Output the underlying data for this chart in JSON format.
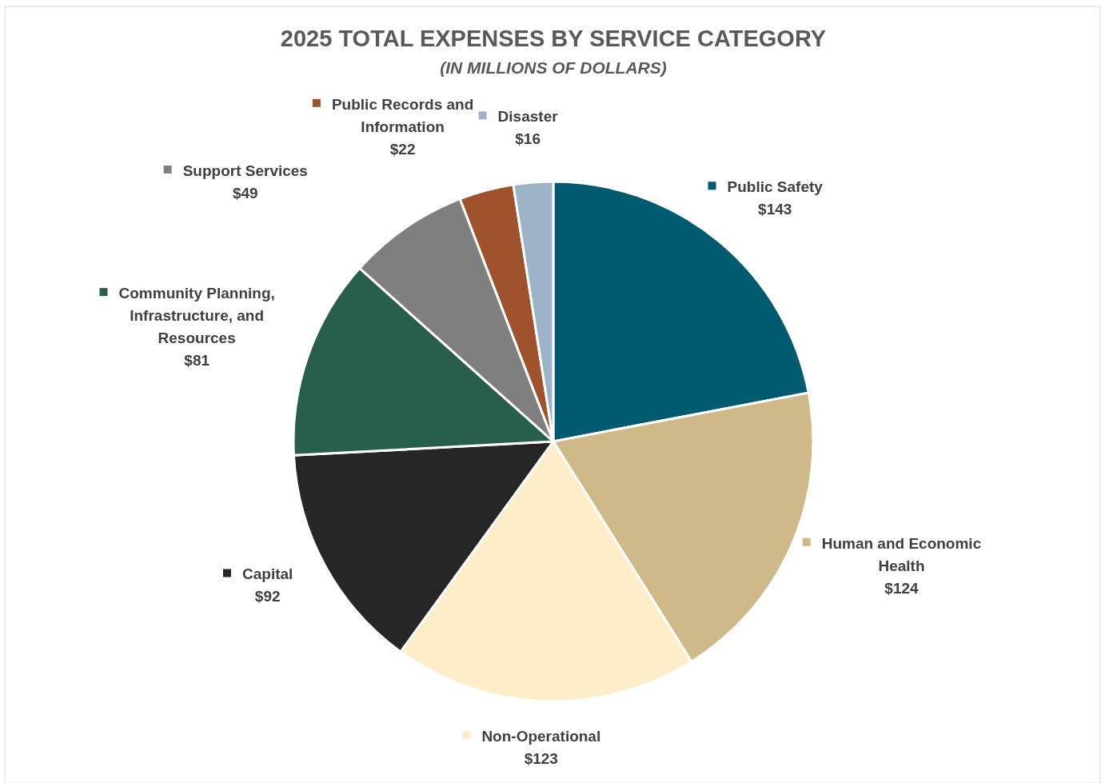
{
  "chart_data": {
    "type": "pie",
    "title": "2025 TOTAL EXPENSES BY SERVICE CATEGORY",
    "subtitle": "(IN MILLIONS OF DOLLARS)",
    "categories": [
      "Public Safety",
      "Human and Economic Health",
      "Non-Operational",
      "Capital",
      "Community Planning, Infrastructure, and Resources",
      "Support Services",
      "Public Records and Information",
      "Disaster"
    ],
    "values": [
      143,
      124,
      123,
      92,
      81,
      49,
      22,
      16
    ],
    "value_labels": [
      "$143",
      "$124",
      "$123",
      "$92",
      "$81",
      "$49",
      "$22",
      "$16"
    ],
    "colors": [
      "#005a70",
      "#cfb988",
      "#fdedc8",
      "#262626",
      "#275e4e",
      "#7f7f7f",
      "#a0522d",
      "#9db3c8"
    ],
    "legend": "top left"
  }
}
